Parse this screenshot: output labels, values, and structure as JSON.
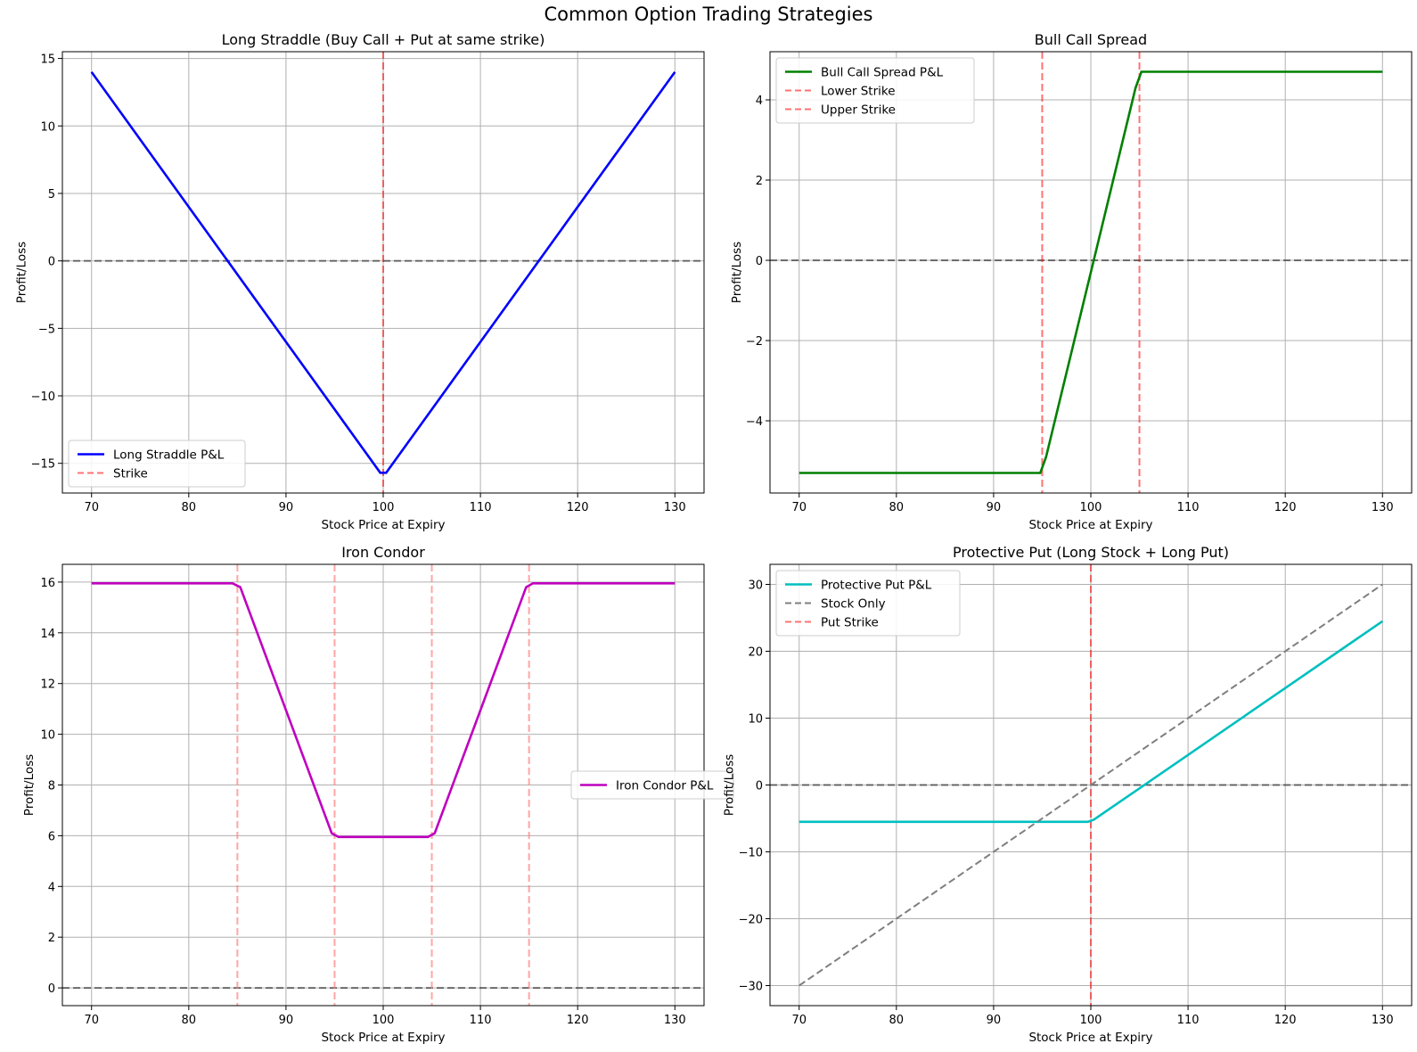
{
  "figure": {
    "title": "Common Option Trading Strategies"
  },
  "chart_data": [
    {
      "type": "line",
      "title": "Long Straddle (Buy Call + Put at same strike)",
      "xlabel": "Stock Price at Expiry",
      "ylabel": "Profit/Loss",
      "xlim": [
        67,
        133
      ],
      "ylim": [
        -17.2,
        15.5
      ],
      "xticks": [
        70,
        80,
        90,
        100,
        110,
        120,
        130
      ],
      "yticks": [
        -15,
        -10,
        -5,
        0,
        5,
        10,
        15
      ],
      "grid": true,
      "legend_position": "lower-left",
      "series": [
        {
          "name": "Long Straddle P&L",
          "color": "#0000ff",
          "style": "solid",
          "x": [
            70,
            99.7,
            100.3,
            130
          ],
          "y": [
            14.0,
            -15.7,
            -15.7,
            14.0
          ]
        },
        {
          "name": "Strike",
          "color": "#ff0000",
          "style": "dashed",
          "kind": "vline",
          "x": [
            100
          ]
        }
      ],
      "reference_lines": [
        {
          "kind": "hline",
          "y": 0,
          "color": "#000000"
        }
      ]
    },
    {
      "type": "line",
      "title": "Bull Call Spread",
      "xlabel": "Stock Price at Expiry",
      "ylabel": "Profit/Loss",
      "xlim": [
        67,
        133
      ],
      "ylim": [
        -5.8,
        5.2
      ],
      "xticks": [
        70,
        80,
        90,
        100,
        110,
        120,
        130
      ],
      "yticks": [
        -4,
        -2,
        0,
        2,
        4
      ],
      "grid": true,
      "legend_position": "upper-left",
      "series": [
        {
          "name": "Bull Call Spread P&L",
          "color": "#008000",
          "style": "solid",
          "x": [
            70,
            94.8,
            95.4,
            104.6,
            105.2,
            130
          ],
          "y": [
            -5.3,
            -5.3,
            -4.9,
            4.3,
            4.7,
            4.7
          ]
        },
        {
          "name": "Lower Strike",
          "color": "#ff0000",
          "style": "dashed",
          "kind": "vline",
          "x": [
            95
          ]
        },
        {
          "name": "Upper Strike",
          "color": "#ff0000",
          "style": "dashed",
          "kind": "vline",
          "x": [
            105
          ]
        }
      ],
      "reference_lines": [
        {
          "kind": "hline",
          "y": 0,
          "color": "#000000"
        }
      ]
    },
    {
      "type": "line",
      "title": "Iron Condor",
      "xlabel": "Stock Price at Expiry",
      "ylabel": "Profit/Loss",
      "xlim": [
        67,
        133
      ],
      "ylim": [
        -0.7,
        16.7
      ],
      "xticks": [
        70,
        80,
        90,
        100,
        110,
        120,
        130
      ],
      "yticks": [
        0,
        2,
        4,
        6,
        8,
        10,
        12,
        14,
        16
      ],
      "grid": true,
      "legend_position": "center-right",
      "series": [
        {
          "name": "Iron Condor P&L",
          "color": "#bf00bf",
          "style": "solid",
          "x": [
            70,
            84.5,
            85.3,
            94.7,
            95.4,
            104.6,
            105.3,
            114.7,
            115.4,
            130
          ],
          "y": [
            15.95,
            15.95,
            15.8,
            6.1,
            5.95,
            5.95,
            6.1,
            15.8,
            15.95,
            15.95
          ]
        },
        {
          "name": "",
          "color": "#ff8080",
          "style": "dashed",
          "kind": "vline",
          "x": [
            85,
            95,
            105,
            115
          ]
        }
      ],
      "reference_lines": [
        {
          "kind": "hline",
          "y": 0,
          "color": "#000000"
        }
      ]
    },
    {
      "type": "line",
      "title": "Protective Put (Long Stock + Long Put)",
      "xlabel": "Stock Price at Expiry",
      "ylabel": "Profit/Loss",
      "xlim": [
        67,
        133
      ],
      "ylim": [
        -33,
        33
      ],
      "xticks": [
        70,
        80,
        90,
        100,
        110,
        120,
        130
      ],
      "yticks": [
        -30,
        -20,
        -10,
        0,
        10,
        20,
        30
      ],
      "grid": true,
      "legend_position": "upper-left",
      "series": [
        {
          "name": "Protective Put P&L",
          "color": "#00bfbf",
          "style": "solid",
          "x": [
            70,
            99.7,
            100.3,
            130
          ],
          "y": [
            -5.5,
            -5.5,
            -5.2,
            24.5
          ]
        },
        {
          "name": "Stock Only",
          "color": "#7f7f7f",
          "style": "dashed",
          "x": [
            70,
            130
          ],
          "y": [
            -30,
            30
          ]
        },
        {
          "name": "Put Strike",
          "color": "#ff0000",
          "style": "dashed",
          "kind": "vline",
          "x": [
            100
          ]
        }
      ],
      "reference_lines": [
        {
          "kind": "hline",
          "y": 0,
          "color": "#000000"
        }
      ]
    }
  ]
}
